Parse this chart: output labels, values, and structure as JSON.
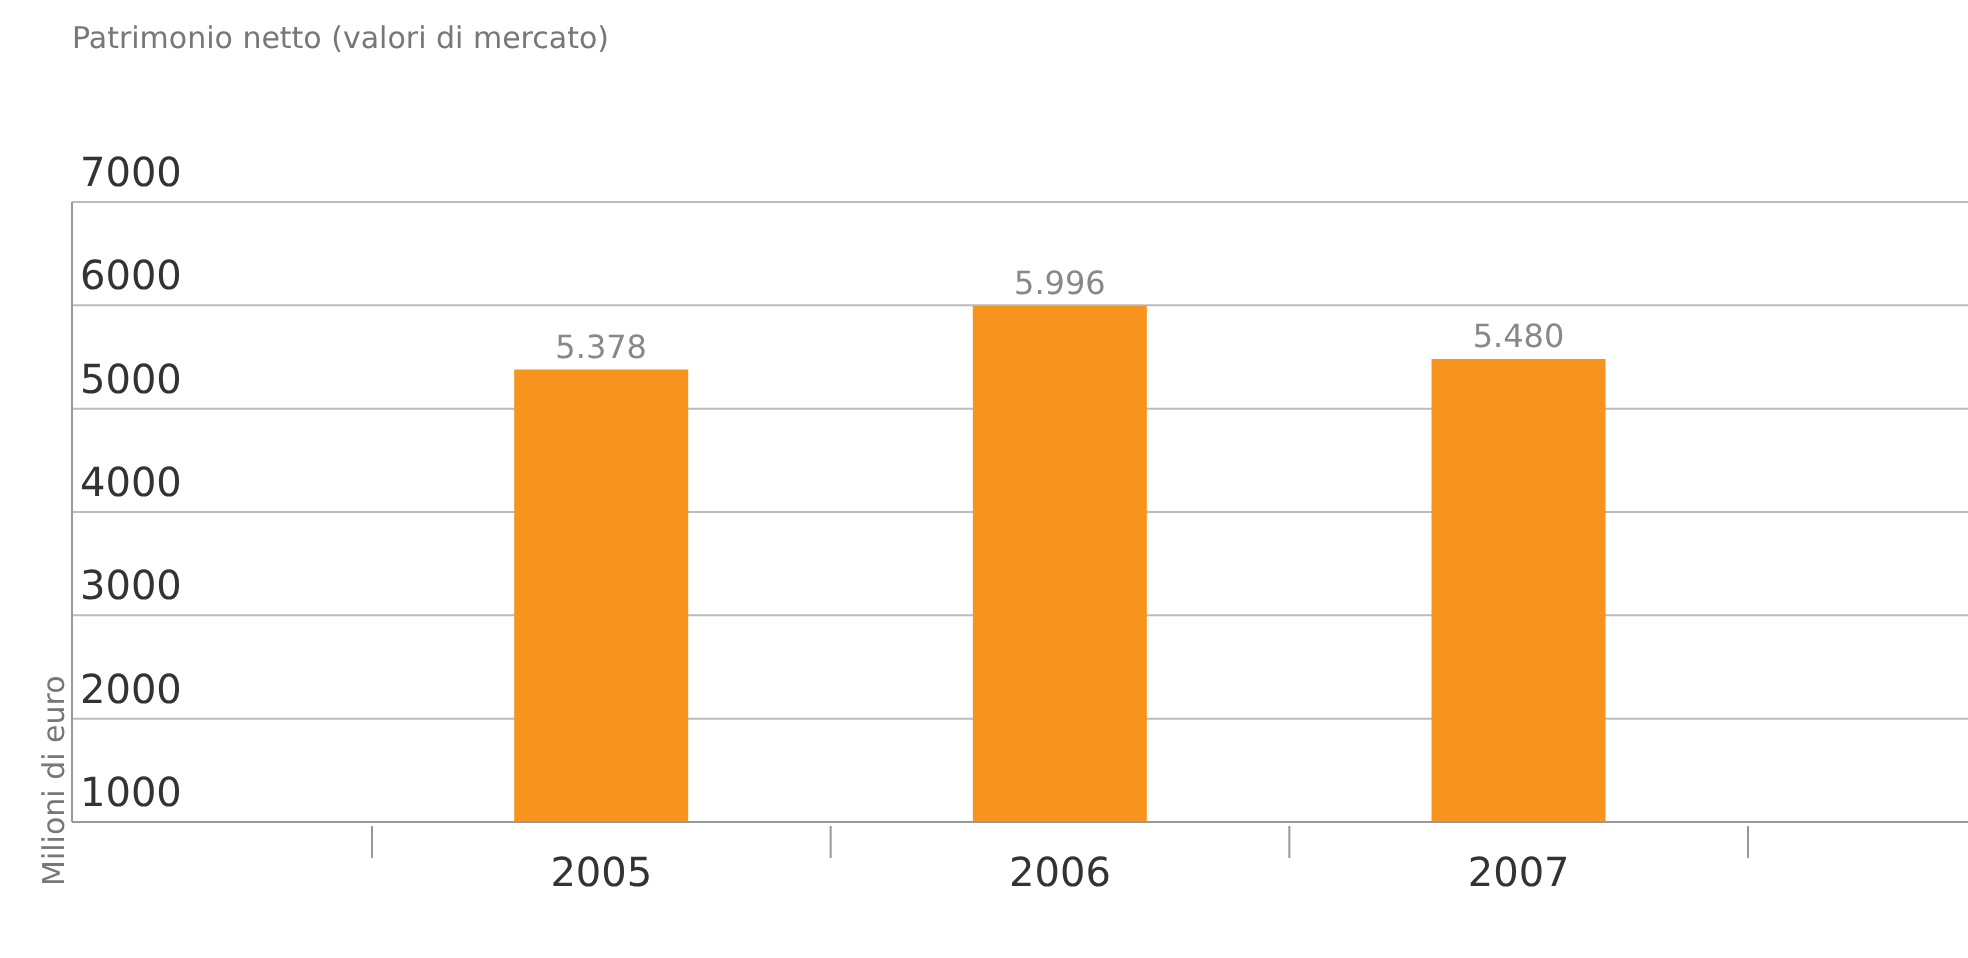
{
  "chart_data": {
    "type": "bar",
    "title": "Patrimonio netto (valori di mercato)",
    "ylabel": "Milioni di euro",
    "categories": [
      "2005",
      "2006",
      "2007"
    ],
    "values": [
      5378,
      5996,
      5480
    ],
    "value_labels": [
      "5.378",
      "5.996",
      "5.480"
    ],
    "color": "#f7941d",
    "ylim": [
      1000,
      7000
    ],
    "yticks": [
      1000,
      2000,
      3000,
      4000,
      5000,
      6000,
      7000
    ],
    "grid": "y"
  }
}
